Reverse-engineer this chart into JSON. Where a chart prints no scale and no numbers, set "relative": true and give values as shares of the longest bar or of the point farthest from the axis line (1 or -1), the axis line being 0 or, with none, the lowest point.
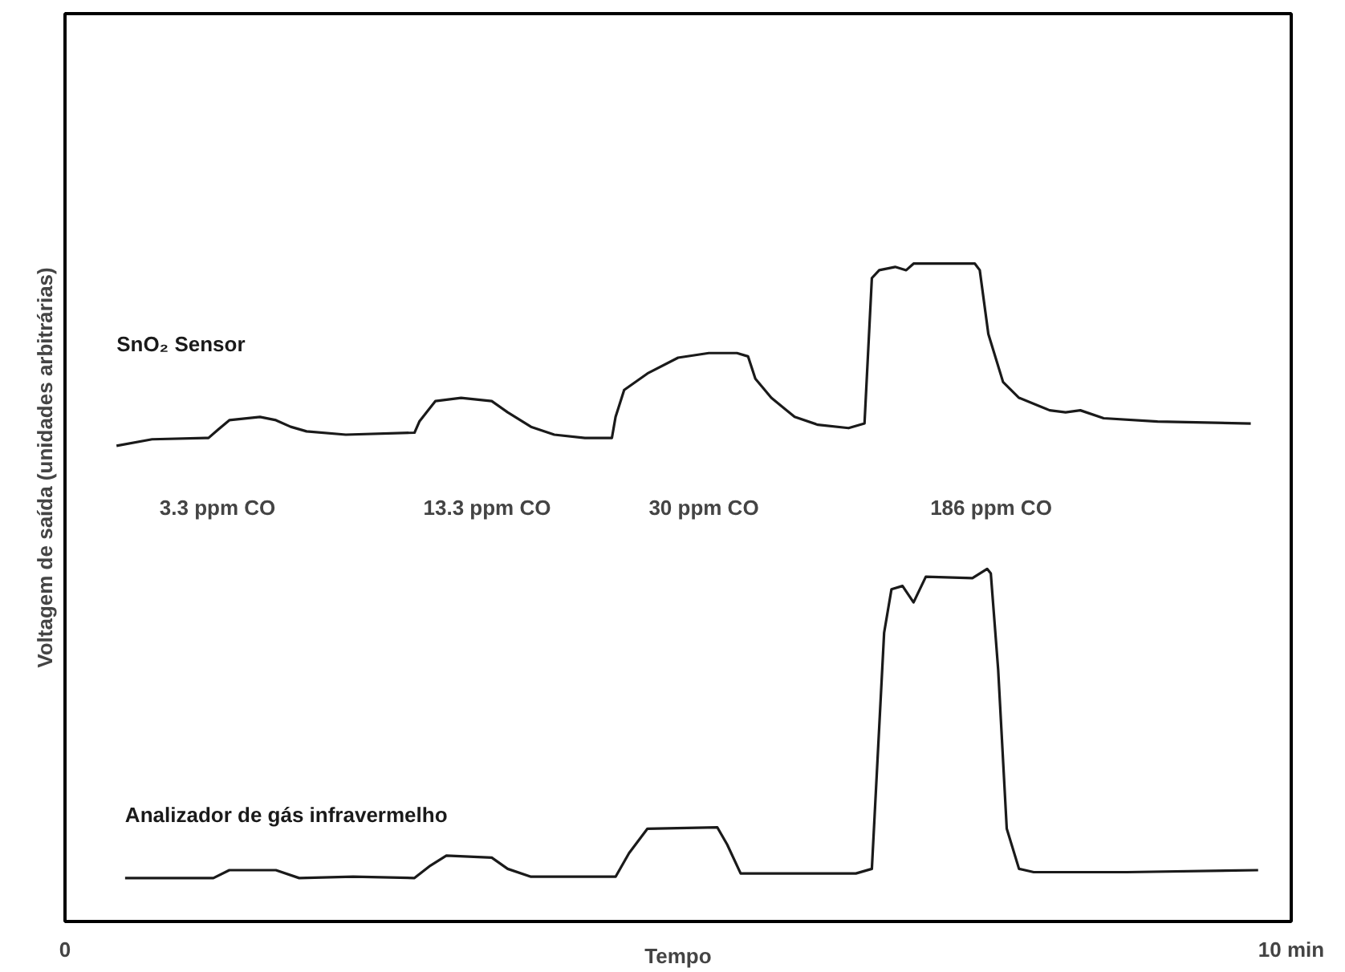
{
  "chart_data": {
    "type": "line",
    "relative": true,
    "xlabel": "Tempo",
    "ylabel": "Voltagem de saída (unidades arbitrárias)",
    "xlim": [
      0,
      10
    ],
    "xticks": [
      {
        "value": 0,
        "label": "0"
      },
      {
        "value": 10,
        "label": "10 min"
      }
    ],
    "marker": "none",
    "line_style": "solid",
    "series": [
      {
        "name": "SnO₂ Sensor",
        "color": "#1a1a1a",
        "x": [
          0.42,
          0.71,
          1.17,
          1.25,
          1.34,
          1.59,
          1.72,
          1.84,
          1.97,
          2.29,
          2.85,
          2.89,
          3.02,
          3.23,
          3.48,
          3.61,
          3.8,
          3.99,
          4.24,
          4.46,
          4.49,
          4.56,
          4.75,
          5.0,
          5.25,
          5.48,
          5.57,
          5.63,
          5.76,
          5.95,
          6.14,
          6.39,
          6.52,
          6.58,
          6.64,
          6.77,
          6.86,
          6.92,
          7.42,
          7.46,
          7.53,
          7.65,
          7.78,
          8.03,
          8.16,
          8.28,
          8.47,
          8.91,
          9.67
        ],
        "values": [
          0.723,
          0.733,
          0.735,
          0.748,
          0.762,
          0.767,
          0.762,
          0.752,
          0.745,
          0.74,
          0.743,
          0.76,
          0.791,
          0.796,
          0.791,
          0.774,
          0.752,
          0.74,
          0.735,
          0.735,
          0.767,
          0.808,
          0.833,
          0.857,
          0.864,
          0.864,
          0.859,
          0.825,
          0.796,
          0.767,
          0.755,
          0.75,
          0.757,
          0.978,
          0.99,
          0.995,
          0.99,
          1.0,
          1.0,
          0.99,
          0.893,
          0.82,
          0.796,
          0.777,
          0.774,
          0.777,
          0.765,
          0.76,
          0.757
        ]
      },
      {
        "name": "Analizador de gás infravermelho",
        "color": "#1a1a1a",
        "x": [
          0.49,
          1.21,
          1.34,
          1.72,
          1.91,
          2.35,
          2.85,
          2.98,
          3.11,
          3.48,
          3.61,
          3.8,
          4.49,
          4.6,
          4.75,
          5.32,
          5.4,
          5.51,
          5.76,
          6.45,
          6.58,
          6.68,
          6.74,
          6.83,
          6.92,
          7.02,
          7.4,
          7.52,
          7.55,
          7.61,
          7.68,
          7.78,
          7.9,
          8.66,
          9.73
        ],
        "values": [
          0.066,
          0.066,
          0.078,
          0.078,
          0.066,
          0.068,
          0.066,
          0.085,
          0.1,
          0.097,
          0.08,
          0.068,
          0.068,
          0.104,
          0.141,
          0.143,
          0.117,
          0.073,
          0.073,
          0.073,
          0.08,
          0.439,
          0.505,
          0.51,
          0.485,
          0.524,
          0.522,
          0.536,
          0.529,
          0.383,
          0.141,
          0.08,
          0.075,
          0.075,
          0.078
        ]
      }
    ],
    "annotations": [
      "3.3 ppm CO",
      "13.3 ppm CO",
      "30 ppm CO",
      "186 ppm CO"
    ]
  }
}
